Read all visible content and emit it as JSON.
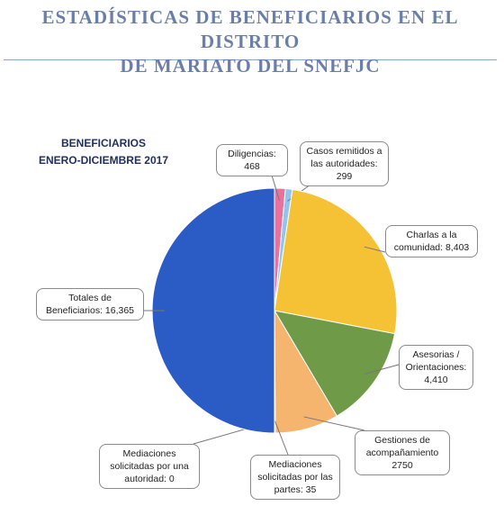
{
  "chart_data": {
    "type": "pie",
    "title": [
      "ESTADÍSTICAS DE  BENEFICIARIOS EN EL DISTRITO",
      "DE MARIATO DEL SNEFJC"
    ],
    "subtitle": [
      "BENEFICIARIOS",
      "ENERO-DICIEMBRE  2017"
    ],
    "categories": [
      "Diligencias:",
      "Casos remitidos a las autoridades:",
      "Charlas  a la comunidad:",
      "Asesorias / Orientaciones:",
      "Gestiones de acompañamiento",
      "Mediaciones solicitadas por las partes:",
      "Mediaciones solicitadas por una autoridad:",
      "Totales de Beneficiarios:"
    ],
    "values": [
      468,
      299,
      8403,
      4410,
      2750,
      35,
      0,
      16365
    ],
    "value_labels": [
      "468",
      "299",
      "8,403",
      "4,410",
      "2750",
      "35",
      "0",
      "16,365"
    ],
    "colors": [
      "#e8729c",
      "#92c5ec",
      "#f6c235",
      "#6f9a48",
      "#f5b56e",
      "#a4a4a4",
      "#5b7fc9",
      "#2b5cc6"
    ]
  }
}
